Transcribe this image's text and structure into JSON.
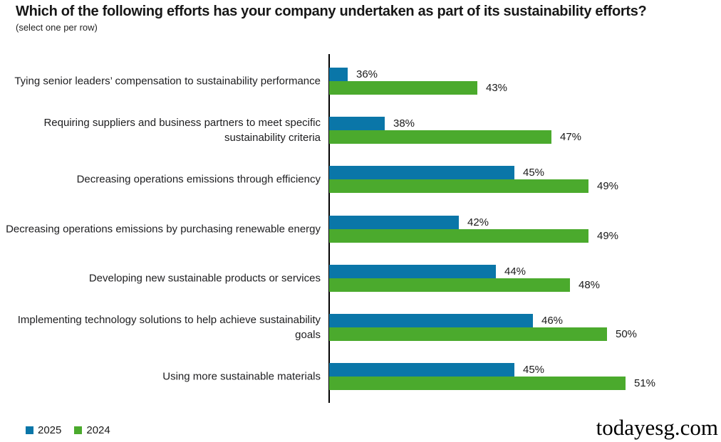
{
  "header": {
    "title": "Which of the following efforts has your company undertaken as part of its sustainability efforts?",
    "subtitle": "(select one per row)"
  },
  "chart_data": {
    "type": "bar",
    "orientation": "horizontal",
    "title": "Which of the following efforts has your company undertaken as part of its sustainability efforts?",
    "subtitle": "(select one per row)",
    "categories": [
      "Tying senior leaders’ compensation to sustainability performance",
      "Requiring suppliers and business partners to meet specific sustainability criteria",
      "Decreasing operations emissions through efficiency",
      "Decreasing operations emissions by purchasing renewable energy",
      "Developing new sustainable products or services",
      "Implementing technology solutions to help achieve sustainability goals",
      "Using more sustainable materials"
    ],
    "series": [
      {
        "name": "2025",
        "color": "#0a76a8",
        "values": [
          36,
          38,
          45,
          42,
          44,
          46,
          45
        ]
      },
      {
        "name": "2024",
        "color": "#4baa2d",
        "values": [
          43,
          47,
          49,
          49,
          48,
          50,
          51
        ]
      }
    ],
    "value_suffix": "%",
    "xlim": [
      35,
      56
    ],
    "xlabel": "",
    "ylabel": "",
    "grid": false,
    "legend_position": "bottom-left",
    "data_labels": true
  },
  "legend": {
    "items": [
      {
        "label": "2025",
        "color": "#0a76a8"
      },
      {
        "label": "2024",
        "color": "#4baa2d"
      }
    ]
  },
  "watermark": "todayesg.com"
}
